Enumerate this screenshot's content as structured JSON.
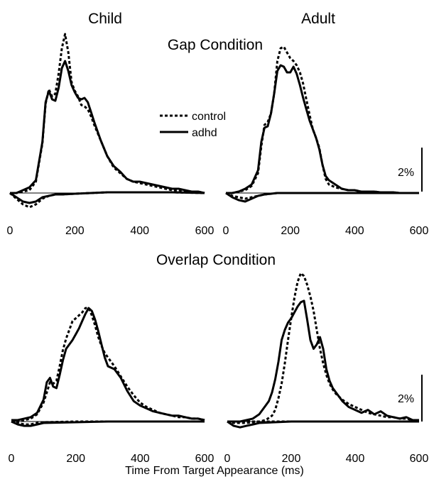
{
  "figure": {
    "col_titles": [
      "Child",
      "Adult"
    ],
    "row_titles": [
      "Gap Condition",
      "Overlap Condition"
    ],
    "xlabel": "Time From Target Appearance (ms)",
    "scale_bar_label": "2%",
    "legend": [
      {
        "label": "control",
        "style": "dotted"
      },
      {
        "label": "adhd",
        "style": "solid"
      }
    ]
  },
  "chart_data": [
    {
      "type": "line",
      "panel": "child-gap",
      "xlim": [
        0,
        600
      ],
      "xticks": [
        0,
        200,
        400,
        600
      ],
      "ylim": [
        -2,
        11
      ],
      "series": [
        {
          "name": "control",
          "style": "dotted",
          "x": [
            0,
            20,
            40,
            60,
            80,
            100,
            110,
            120,
            130,
            140,
            150,
            160,
            170,
            180,
            190,
            200,
            210,
            220,
            230,
            240,
            250,
            260,
            280,
            300,
            320,
            340,
            360,
            380,
            400,
            420,
            440,
            460,
            480,
            500,
            520,
            540,
            560,
            580,
            600
          ],
          "y": [
            0,
            0,
            0.1,
            0.2,
            0.8,
            3.5,
            6.3,
            7.3,
            6.8,
            7.0,
            8.4,
            10.2,
            11.2,
            9.9,
            7.8,
            7.2,
            6.8,
            6.2,
            6.1,
            5.9,
            5.4,
            4.8,
            3.7,
            2.6,
            1.8,
            1.4,
            1.0,
            0.8,
            0.7,
            0.6,
            0.5,
            0.4,
            0.3,
            0.2,
            0.2,
            0.1,
            0.1,
            0.1,
            0
          ]
        },
        {
          "name": "adhd",
          "style": "solid",
          "x": [
            0,
            20,
            40,
            60,
            80,
            100,
            110,
            120,
            130,
            140,
            150,
            160,
            170,
            180,
            190,
            200,
            210,
            220,
            230,
            240,
            250,
            260,
            280,
            300,
            320,
            340,
            360,
            380,
            400,
            420,
            440,
            460,
            480,
            500,
            520,
            540,
            560,
            580,
            600
          ],
          "y": [
            0,
            0,
            0.2,
            0.4,
            0.9,
            3.6,
            6.4,
            7.2,
            6.6,
            6.5,
            7.4,
            8.8,
            9.3,
            8.6,
            7.6,
            7.1,
            6.7,
            6.6,
            6.7,
            6.4,
            5.7,
            5.0,
            3.7,
            2.6,
            1.9,
            1.5,
            1.0,
            0.8,
            0.8,
            0.7,
            0.6,
            0.5,
            0.4,
            0.3,
            0.3,
            0.2,
            0.1,
            0.1,
            0
          ]
        },
        {
          "name": "control",
          "style": "dotted",
          "x": [
            0,
            20,
            40,
            60,
            80,
            100,
            120,
            140,
            160,
            200,
            250,
            300,
            400,
            500,
            600
          ],
          "y": [
            0,
            -0.4,
            -0.8,
            -1.0,
            -0.8,
            -0.4,
            -0.2,
            -0.1,
            -0.1,
            -0.05,
            0,
            0.05,
            0.05,
            0.05,
            0
          ]
        },
        {
          "name": "adhd",
          "style": "solid",
          "x": [
            0,
            20,
            40,
            60,
            80,
            100,
            120,
            140,
            160,
            200,
            250,
            300,
            400,
            500,
            600
          ],
          "y": [
            0,
            -0.3,
            -0.6,
            -0.7,
            -0.6,
            -0.3,
            -0.2,
            -0.1,
            -0.1,
            -0.05,
            0,
            0.05,
            0.05,
            0.05,
            0
          ]
        }
      ]
    },
    {
      "type": "line",
      "panel": "adult-gap",
      "xlim": [
        0,
        600
      ],
      "xticks": [
        0,
        200,
        400,
        600
      ],
      "ylim": [
        -2,
        11
      ],
      "series": [
        {
          "name": "control",
          "style": "dotted",
          "x": [
            0,
            20,
            40,
            60,
            80,
            100,
            110,
            120,
            130,
            140,
            150,
            160,
            170,
            180,
            190,
            200,
            210,
            220,
            230,
            240,
            250,
            260,
            270,
            280,
            290,
            300,
            310,
            320,
            340,
            360,
            380,
            400,
            420,
            440,
            460,
            480,
            500,
            520,
            540,
            560,
            580,
            600
          ],
          "y": [
            0,
            0,
            0.1,
            0.2,
            0.5,
            1.4,
            3.3,
            4.8,
            5.0,
            5.6,
            7.0,
            9.3,
            10.2,
            10.3,
            9.9,
            9.5,
            9.3,
            9.0,
            8.5,
            7.7,
            6.6,
            5.5,
            4.5,
            3.9,
            3.2,
            2.0,
            1.0,
            0.6,
            0.4,
            0.3,
            0.2,
            0.2,
            0.1,
            0.1,
            0.1,
            0.05,
            0.05,
            0.05,
            0,
            0,
            0,
            0
          ]
        },
        {
          "name": "adhd",
          "style": "solid",
          "x": [
            0,
            20,
            40,
            60,
            80,
            100,
            110,
            120,
            130,
            140,
            150,
            160,
            170,
            180,
            190,
            200,
            210,
            220,
            230,
            240,
            250,
            260,
            270,
            280,
            290,
            300,
            310,
            320,
            340,
            360,
            380,
            400,
            420,
            440,
            460,
            480,
            500,
            520,
            540,
            560,
            580,
            600
          ],
          "y": [
            0,
            0,
            0.1,
            0.3,
            0.6,
            1.6,
            3.6,
            4.6,
            4.7,
            5.6,
            7.0,
            8.6,
            9.0,
            8.9,
            8.5,
            8.5,
            8.9,
            8.4,
            7.6,
            6.7,
            5.9,
            5.1,
            4.5,
            3.9,
            3.1,
            2.0,
            1.2,
            0.9,
            0.6,
            0.3,
            0.2,
            0.2,
            0.1,
            0.1,
            0.1,
            0.05,
            0.05,
            0.05,
            0,
            0,
            0,
            0
          ]
        },
        {
          "name": "control",
          "style": "dotted",
          "x": [
            0,
            20,
            40,
            60,
            80,
            100,
            120,
            140,
            160,
            200,
            300,
            400,
            500,
            600
          ],
          "y": [
            0,
            -0.2,
            -0.3,
            -0.4,
            -0.3,
            -0.2,
            -0.1,
            -0.05,
            0,
            0,
            0,
            0,
            0,
            0
          ]
        },
        {
          "name": "adhd",
          "style": "solid",
          "x": [
            0,
            20,
            40,
            60,
            80,
            100,
            120,
            140,
            160,
            200,
            300,
            400,
            500,
            600
          ],
          "y": [
            0,
            -0.3,
            -0.5,
            -0.6,
            -0.4,
            -0.2,
            -0.1,
            -0.05,
            0,
            0,
            0,
            0,
            0,
            0
          ]
        }
      ]
    },
    {
      "type": "line",
      "panel": "child-overlap",
      "xlim": [
        0,
        600
      ],
      "xticks": [
        0,
        200,
        400,
        600
      ],
      "ylim": [
        -1,
        11
      ],
      "series": [
        {
          "name": "control",
          "style": "dotted",
          "x": [
            0,
            20,
            40,
            60,
            80,
            100,
            110,
            120,
            130,
            140,
            150,
            160,
            170,
            180,
            190,
            200,
            210,
            220,
            230,
            240,
            250,
            260,
            270,
            280,
            290,
            300,
            320,
            340,
            360,
            380,
            400,
            420,
            440,
            460,
            480,
            500,
            520,
            540,
            560,
            580,
            600
          ],
          "y": [
            0,
            0,
            0.1,
            0.2,
            0.5,
            1.3,
            2.0,
            2.7,
            2.6,
            2.8,
            3.8,
            4.9,
            5.7,
            6.3,
            6.9,
            7.1,
            7.3,
            7.5,
            7.8,
            7.8,
            7.3,
            6.6,
            5.8,
            5.2,
            4.7,
            4.4,
            3.8,
            3.1,
            2.4,
            1.8,
            1.3,
            1.0,
            0.8,
            0.6,
            0.5,
            0.4,
            0.3,
            0.3,
            0.2,
            0.2,
            0.1
          ]
        },
        {
          "name": "adhd",
          "style": "solid",
          "x": [
            0,
            20,
            40,
            60,
            80,
            100,
            110,
            120,
            130,
            140,
            150,
            160,
            170,
            180,
            190,
            200,
            210,
            220,
            230,
            240,
            250,
            260,
            270,
            280,
            290,
            300,
            320,
            340,
            360,
            380,
            400,
            420,
            440,
            460,
            480,
            500,
            520,
            540,
            560,
            580,
            600
          ],
          "y": [
            0.1,
            0.1,
            0.2,
            0.3,
            0.6,
            1.5,
            2.7,
            3.0,
            2.4,
            2.3,
            3.2,
            4.2,
            5.0,
            5.3,
            5.6,
            6.0,
            6.4,
            6.9,
            7.4,
            7.8,
            7.6,
            7.0,
            6.2,
            5.3,
            4.4,
            3.8,
            3.6,
            3.0,
            2.1,
            1.4,
            1.1,
            0.9,
            0.7,
            0.6,
            0.5,
            0.4,
            0.4,
            0.3,
            0.2,
            0.2,
            0.1
          ]
        },
        {
          "name": "control",
          "style": "dotted",
          "x": [
            0,
            20,
            40,
            60,
            80,
            100,
            200,
            300,
            400,
            500,
            600
          ],
          "y": [
            0,
            -0.1,
            -0.2,
            -0.2,
            -0.1,
            -0.05,
            0,
            0,
            0,
            0,
            0
          ]
        },
        {
          "name": "adhd",
          "style": "solid",
          "x": [
            0,
            20,
            40,
            60,
            80,
            100,
            200,
            300,
            400,
            500,
            600
          ],
          "y": [
            0,
            -0.2,
            -0.3,
            -0.3,
            -0.2,
            -0.1,
            -0.05,
            0,
            0,
            0,
            0
          ]
        }
      ]
    },
    {
      "type": "line",
      "panel": "adult-overlap",
      "xlim": [
        0,
        600
      ],
      "xticks": [
        0,
        200,
        400,
        600
      ],
      "ylim": [
        -1,
        11
      ],
      "series": [
        {
          "name": "control",
          "style": "dotted",
          "x": [
            0,
            20,
            40,
            60,
            80,
            100,
            120,
            140,
            150,
            160,
            170,
            180,
            190,
            200,
            210,
            220,
            230,
            240,
            250,
            260,
            270,
            280,
            290,
            300,
            310,
            320,
            330,
            340,
            360,
            380,
            400,
            420,
            440,
            460,
            480,
            500,
            520,
            540,
            560,
            580,
            600
          ],
          "y": [
            0,
            0,
            0,
            0,
            0,
            0,
            0.1,
            0.4,
            0.8,
            1.6,
            2.6,
            4.0,
            5.6,
            7.1,
            8.5,
            9.6,
            10.2,
            10.0,
            9.4,
            8.6,
            7.6,
            6.3,
            5.0,
            4.0,
            3.2,
            2.6,
            2.2,
            1.9,
            1.5,
            1.2,
            1.0,
            0.8,
            0.6,
            0.5,
            0.4,
            0.3,
            0.3,
            0.2,
            0.2,
            0.1,
            0.1
          ]
        },
        {
          "name": "adhd",
          "style": "solid",
          "x": [
            0,
            20,
            40,
            60,
            80,
            100,
            120,
            130,
            140,
            150,
            160,
            170,
            180,
            190,
            200,
            210,
            220,
            230,
            240,
            250,
            260,
            270,
            280,
            290,
            300,
            310,
            320,
            330,
            340,
            360,
            380,
            400,
            420,
            440,
            460,
            480,
            500,
            520,
            540,
            560,
            580,
            600
          ],
          "y": [
            0,
            0,
            0,
            0.1,
            0.2,
            0.5,
            1.1,
            1.4,
            2.0,
            2.9,
            4.1,
            5.6,
            6.3,
            6.8,
            7.1,
            7.5,
            7.9,
            8.2,
            8.3,
            7.0,
            5.6,
            5.0,
            5.3,
            5.8,
            5.0,
            3.6,
            2.8,
            2.3,
            2.0,
            1.4,
            1.0,
            0.8,
            0.6,
            0.8,
            0.5,
            0.7,
            0.4,
            0.3,
            0.2,
            0.3,
            0.1,
            0.1
          ]
        },
        {
          "name": "control",
          "style": "dotted",
          "x": [
            0,
            20,
            40,
            60,
            80,
            100,
            200,
            300,
            400,
            500,
            600
          ],
          "y": [
            0,
            -0.1,
            -0.1,
            -0.1,
            -0.05,
            0,
            0,
            0,
            0,
            0,
            0
          ]
        },
        {
          "name": "adhd",
          "style": "solid",
          "x": [
            0,
            20,
            40,
            60,
            80,
            100,
            200,
            300,
            400,
            500,
            600
          ],
          "y": [
            0,
            -0.3,
            -0.4,
            -0.3,
            -0.2,
            -0.1,
            0,
            0,
            0,
            0,
            0
          ]
        }
      ]
    }
  ]
}
